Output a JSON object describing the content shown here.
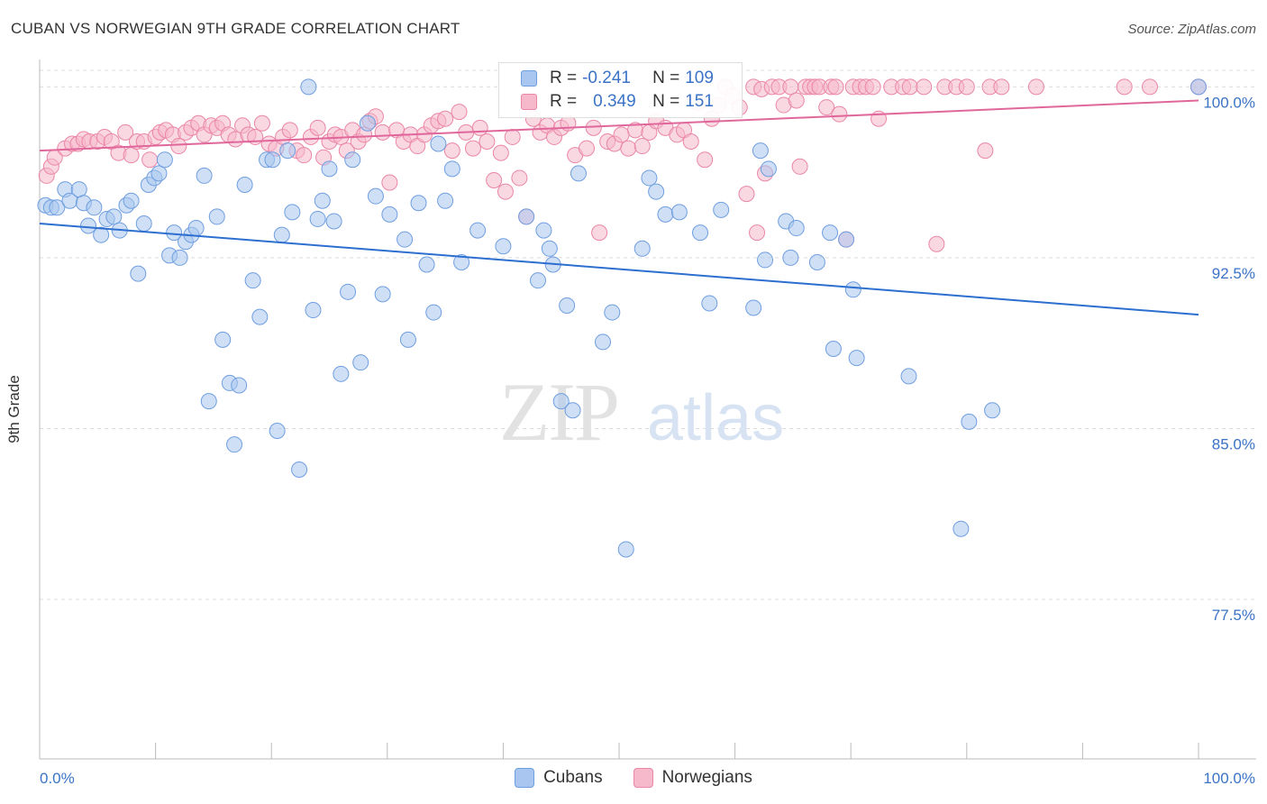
{
  "header": {
    "title": "CUBAN VS NORWEGIAN 9TH GRADE CORRELATION CHART",
    "source": "Source: ZipAtlas.com"
  },
  "watermark": {
    "zip": "ZIP",
    "atlas": "atlas"
  },
  "legend": {
    "rows": [
      {
        "r_label": "R =",
        "r_value": "-0.241",
        "n_label": "N =",
        "n_value": "109",
        "color": "#a8c6ef",
        "stroke": "#6f9ee0"
      },
      {
        "r_label": "R =",
        "r_value": "0.349",
        "n_label": "N =",
        "n_value": "151",
        "color": "#f6b8cb",
        "stroke": "#ea86a6"
      }
    ]
  },
  "bottom_legend": {
    "cubans": "Cubans",
    "norwegians": "Norwegians"
  },
  "colors": {
    "cuban_fill": "#a8c6ef",
    "cuban_stroke": "#6f9ee0",
    "cuban_line": "#2d6fd0",
    "norwegian_fill": "#f6b8cb",
    "norwegian_stroke": "#ea86a6",
    "norwegian_line": "#e0679a",
    "tick_text": "#3a73c6",
    "grid": "#dcdcdc"
  },
  "chart_data": {
    "type": "scatter",
    "title": "CUBAN VS NORWEGIAN 9TH GRADE CORRELATION CHART",
    "xlabel": "",
    "ylabel": "9th Grade",
    "xlim": [
      0,
      100
    ],
    "ylim": [
      70.5,
      101.2
    ],
    "x_tick_labels": [
      "0.0%",
      "100.0%"
    ],
    "y_ticks": [
      77.5,
      85.0,
      92.5,
      100.0
    ],
    "y_tick_labels": [
      "77.5%",
      "85.0%",
      "92.5%",
      "100.0%"
    ],
    "grid": "horizontal dashed",
    "legend_placement": "top-center",
    "series": [
      {
        "name": "Cubans",
        "r": -0.241,
        "n": 109,
        "trend": [
          [
            0,
            94.0
          ],
          [
            100,
            90.0
          ]
        ],
        "points": [
          [
            0.5,
            94.8
          ],
          [
            1.0,
            94.7
          ],
          [
            1.5,
            94.7
          ],
          [
            2.2,
            95.5
          ],
          [
            2.6,
            95.0
          ],
          [
            3.4,
            95.5
          ],
          [
            3.8,
            94.9
          ],
          [
            4.2,
            93.9
          ],
          [
            4.7,
            94.7
          ],
          [
            5.3,
            93.5
          ],
          [
            5.8,
            94.2
          ],
          [
            6.4,
            94.3
          ],
          [
            6.9,
            93.7
          ],
          [
            7.5,
            94.8
          ],
          [
            7.9,
            95.0
          ],
          [
            8.5,
            91.8
          ],
          [
            9.0,
            94.0
          ],
          [
            9.4,
            95.7
          ],
          [
            9.9,
            96.0
          ],
          [
            10.3,
            96.2
          ],
          [
            10.8,
            96.8
          ],
          [
            11.2,
            92.6
          ],
          [
            11.6,
            93.6
          ],
          [
            12.1,
            92.5
          ],
          [
            12.6,
            93.2
          ],
          [
            13.1,
            93.5
          ],
          [
            13.5,
            93.8
          ],
          [
            14.2,
            96.1
          ],
          [
            14.6,
            86.2
          ],
          [
            15.3,
            94.3
          ],
          [
            15.8,
            88.9
          ],
          [
            16.4,
            87.0
          ],
          [
            16.8,
            84.3
          ],
          [
            17.2,
            86.9
          ],
          [
            17.7,
            95.7
          ],
          [
            18.4,
            91.5
          ],
          [
            19.0,
            89.9
          ],
          [
            19.6,
            96.8
          ],
          [
            20.1,
            96.8
          ],
          [
            20.5,
            84.9
          ],
          [
            20.9,
            93.5
          ],
          [
            21.4,
            97.2
          ],
          [
            21.8,
            94.5
          ],
          [
            22.4,
            83.2
          ],
          [
            23.2,
            100.0
          ],
          [
            23.6,
            90.2
          ],
          [
            24.0,
            94.2
          ],
          [
            24.4,
            95.0
          ],
          [
            25.0,
            96.4
          ],
          [
            25.4,
            94.1
          ],
          [
            26.0,
            87.4
          ],
          [
            26.6,
            91.0
          ],
          [
            27.0,
            96.8
          ],
          [
            27.7,
            87.9
          ],
          [
            28.3,
            98.4
          ],
          [
            29.0,
            95.2
          ],
          [
            29.6,
            90.9
          ],
          [
            30.2,
            94.4
          ],
          [
            31.5,
            93.3
          ],
          [
            31.8,
            88.9
          ],
          [
            32.7,
            94.9
          ],
          [
            33.4,
            92.2
          ],
          [
            34.0,
            90.1
          ],
          [
            34.4,
            97.5
          ],
          [
            35.0,
            95.0
          ],
          [
            35.6,
            96.4
          ],
          [
            36.4,
            92.3
          ],
          [
            37.8,
            93.7
          ],
          [
            40.0,
            93.0
          ],
          [
            42.0,
            94.3
          ],
          [
            43.0,
            91.5
          ],
          [
            43.5,
            93.7
          ],
          [
            44.0,
            92.9
          ],
          [
            44.3,
            92.2
          ],
          [
            45.0,
            86.2
          ],
          [
            45.5,
            90.4
          ],
          [
            46.0,
            85.8
          ],
          [
            46.5,
            96.2
          ],
          [
            48.6,
            88.8
          ],
          [
            49.4,
            90.1
          ],
          [
            50.6,
            79.7
          ],
          [
            52.0,
            92.9
          ],
          [
            52.6,
            96.0
          ],
          [
            53.2,
            95.4
          ],
          [
            54.0,
            94.4
          ],
          [
            55.2,
            94.5
          ],
          [
            57.0,
            93.6
          ],
          [
            57.8,
            90.5
          ],
          [
            58.8,
            94.6
          ],
          [
            61.6,
            90.3
          ],
          [
            62.2,
            97.2
          ],
          [
            62.6,
            92.4
          ],
          [
            62.9,
            96.4
          ],
          [
            64.4,
            94.1
          ],
          [
            64.8,
            92.5
          ],
          [
            65.3,
            93.8
          ],
          [
            67.1,
            92.3
          ],
          [
            68.2,
            93.6
          ],
          [
            68.5,
            88.5
          ],
          [
            69.6,
            93.3
          ],
          [
            70.2,
            91.1
          ],
          [
            70.5,
            88.1
          ],
          [
            75.0,
            87.3
          ],
          [
            79.5,
            80.6
          ],
          [
            80.2,
            85.3
          ],
          [
            82.2,
            85.8
          ],
          [
            100.0,
            100.0
          ]
        ]
      },
      {
        "name": "Norwegians",
        "r": 0.349,
        "n": 151,
        "trend": [
          [
            0,
            97.2
          ],
          [
            100,
            99.4
          ]
        ],
        "points": [
          [
            0.6,
            96.1
          ],
          [
            1.0,
            96.5
          ],
          [
            1.3,
            96.9
          ],
          [
            2.2,
            97.3
          ],
          [
            2.8,
            97.5
          ],
          [
            3.3,
            97.5
          ],
          [
            3.8,
            97.7
          ],
          [
            4.3,
            97.6
          ],
          [
            5.0,
            97.6
          ],
          [
            5.6,
            97.8
          ],
          [
            6.2,
            97.6
          ],
          [
            6.8,
            97.1
          ],
          [
            7.4,
            98.0
          ],
          [
            7.9,
            97.0
          ],
          [
            8.4,
            97.6
          ],
          [
            9.0,
            97.6
          ],
          [
            9.5,
            96.8
          ],
          [
            10.0,
            97.8
          ],
          [
            10.4,
            98.0
          ],
          [
            10.9,
            98.1
          ],
          [
            11.5,
            97.9
          ],
          [
            12.0,
            97.4
          ],
          [
            12.6,
            98.0
          ],
          [
            13.1,
            98.2
          ],
          [
            13.7,
            98.4
          ],
          [
            14.2,
            97.9
          ],
          [
            14.8,
            98.3
          ],
          [
            15.3,
            98.2
          ],
          [
            15.8,
            98.4
          ],
          [
            16.3,
            97.9
          ],
          [
            16.9,
            97.7
          ],
          [
            17.5,
            98.3
          ],
          [
            18.0,
            97.9
          ],
          [
            18.6,
            97.8
          ],
          [
            19.2,
            98.4
          ],
          [
            19.8,
            97.5
          ],
          [
            20.4,
            97.3
          ],
          [
            21.0,
            97.8
          ],
          [
            21.6,
            98.1
          ],
          [
            22.2,
            97.2
          ],
          [
            22.8,
            97.0
          ],
          [
            23.4,
            97.8
          ],
          [
            24.0,
            98.2
          ],
          [
            24.5,
            96.9
          ],
          [
            25.0,
            97.6
          ],
          [
            25.5,
            97.9
          ],
          [
            26.0,
            97.8
          ],
          [
            26.5,
            97.2
          ],
          [
            27.0,
            98.1
          ],
          [
            27.5,
            97.6
          ],
          [
            28.0,
            97.9
          ],
          [
            28.5,
            98.5
          ],
          [
            29.0,
            98.7
          ],
          [
            29.6,
            98.0
          ],
          [
            30.2,
            95.8
          ],
          [
            30.8,
            98.1
          ],
          [
            31.4,
            97.6
          ],
          [
            32.0,
            97.9
          ],
          [
            32.6,
            97.4
          ],
          [
            33.2,
            97.9
          ],
          [
            33.8,
            98.3
          ],
          [
            34.4,
            98.5
          ],
          [
            35.0,
            98.6
          ],
          [
            35.6,
            97.2
          ],
          [
            36.2,
            98.9
          ],
          [
            36.8,
            98.0
          ],
          [
            37.4,
            97.3
          ],
          [
            38.0,
            98.2
          ],
          [
            38.6,
            97.6
          ],
          [
            39.2,
            95.9
          ],
          [
            39.8,
            97.1
          ],
          [
            40.2,
            95.4
          ],
          [
            40.8,
            97.8
          ],
          [
            41.4,
            96.0
          ],
          [
            42.0,
            94.3
          ],
          [
            42.6,
            98.6
          ],
          [
            43.2,
            98.0
          ],
          [
            43.8,
            98.3
          ],
          [
            44.4,
            97.8
          ],
          [
            45.0,
            98.2
          ],
          [
            45.6,
            98.4
          ],
          [
            46.2,
            97.0
          ],
          [
            47.2,
            97.3
          ],
          [
            47.8,
            98.2
          ],
          [
            48.3,
            93.6
          ],
          [
            49.0,
            97.6
          ],
          [
            49.6,
            97.5
          ],
          [
            50.2,
            97.9
          ],
          [
            50.8,
            97.3
          ],
          [
            51.4,
            98.1
          ],
          [
            52.0,
            97.4
          ],
          [
            52.6,
            98.0
          ],
          [
            53.2,
            98.5
          ],
          [
            54.0,
            98.2
          ],
          [
            55.0,
            97.9
          ],
          [
            55.6,
            98.1
          ],
          [
            56.2,
            97.6
          ],
          [
            56.8,
            99.3
          ],
          [
            57.4,
            96.8
          ],
          [
            58.0,
            98.6
          ],
          [
            58.6,
            99.2
          ],
          [
            59.2,
            100.0
          ],
          [
            59.8,
            99.6
          ],
          [
            60.4,
            99.1
          ],
          [
            61.0,
            95.3
          ],
          [
            61.6,
            100.0
          ],
          [
            61.9,
            93.6
          ],
          [
            62.3,
            99.9
          ],
          [
            62.6,
            96.2
          ],
          [
            63.2,
            100.0
          ],
          [
            63.8,
            100.0
          ],
          [
            64.2,
            99.2
          ],
          [
            64.8,
            100.0
          ],
          [
            65.3,
            99.4
          ],
          [
            65.6,
            96.5
          ],
          [
            66.1,
            100.0
          ],
          [
            66.5,
            100.0
          ],
          [
            66.9,
            100.0
          ],
          [
            67.3,
            100.0
          ],
          [
            67.9,
            99.1
          ],
          [
            68.3,
            100.0
          ],
          [
            68.7,
            100.0
          ],
          [
            69.0,
            98.8
          ],
          [
            69.6,
            93.3
          ],
          [
            70.2,
            100.0
          ],
          [
            70.8,
            100.0
          ],
          [
            71.3,
            100.0
          ],
          [
            71.9,
            100.0
          ],
          [
            72.4,
            98.6
          ],
          [
            73.5,
            100.0
          ],
          [
            74.5,
            100.0
          ],
          [
            75.1,
            100.0
          ],
          [
            76.3,
            100.0
          ],
          [
            77.4,
            93.1
          ],
          [
            78.1,
            100.0
          ],
          [
            79.1,
            100.0
          ],
          [
            80.0,
            100.0
          ],
          [
            81.6,
            97.2
          ],
          [
            82.0,
            100.0
          ],
          [
            83.0,
            100.0
          ],
          [
            86.0,
            100.0
          ],
          [
            93.6,
            100.0
          ],
          [
            95.8,
            100.0
          ],
          [
            100.0,
            100.0
          ]
        ]
      }
    ]
  }
}
